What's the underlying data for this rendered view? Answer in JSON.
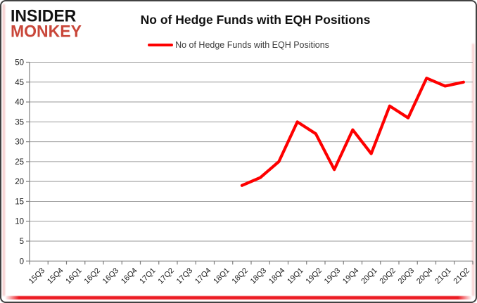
{
  "branding": {
    "logo_line1": "INSIDER",
    "logo_line2": "MONKEY",
    "logo_color_top": "#121212",
    "logo_color_bottom": "#c9473a"
  },
  "header": {
    "title": "No of Hedge Funds with EQH Positions"
  },
  "legend": {
    "label": "No of Hedge Funds with EQH Positions",
    "line_color": "#fe0000"
  },
  "chart_data": {
    "type": "line",
    "title": "No of Hedge Funds with EQH Positions",
    "categories": [
      "15Q3",
      "15Q4",
      "16Q1",
      "16Q2",
      "16Q3",
      "16Q4",
      "17Q1",
      "17Q2",
      "17Q3",
      "17Q4",
      "18Q1",
      "18Q2",
      "18Q3",
      "18Q4",
      "19Q1",
      "19Q2",
      "19Q3",
      "19Q4",
      "20Q1",
      "20Q2",
      "20Q3",
      "20Q4",
      "21Q1",
      "21Q2"
    ],
    "series": [
      {
        "name": "No of Hedge Funds with EQH Positions",
        "color": "#fe0000",
        "values": [
          null,
          null,
          null,
          null,
          null,
          null,
          null,
          null,
          null,
          null,
          null,
          19,
          21,
          25,
          35,
          32,
          23,
          33,
          27,
          39,
          36,
          46,
          44,
          45
        ]
      }
    ],
    "ylim": [
      0,
      50
    ],
    "y_ticks": [
      0,
      5,
      10,
      15,
      20,
      25,
      30,
      35,
      40,
      45,
      50
    ],
    "grid": "horizontal",
    "legend_position": "top",
    "axis_color": "#7f7f7f",
    "grid_color": "#9a9a9a",
    "label_color": "#1a1a1a"
  }
}
